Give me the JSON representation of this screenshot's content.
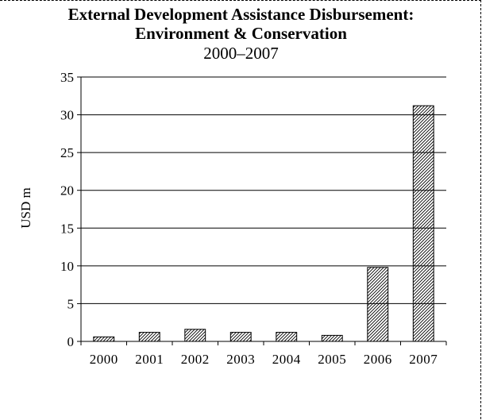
{
  "chart_data": {
    "type": "bar",
    "title": "External Development Assistance Disbursement:",
    "title_line2": "Environment & Conservation",
    "subtitle": "2000–2007",
    "xlabel": "",
    "ylabel": "USD m",
    "categories": [
      "2000",
      "2001",
      "2002",
      "2003",
      "2004",
      "2005",
      "2006",
      "2007"
    ],
    "series": [
      {
        "values": [
          0.6,
          1.2,
          1.6,
          1.2,
          1.2,
          0.8,
          9.8,
          31.2
        ]
      }
    ],
    "ylim": [
      0,
      35
    ],
    "yticks": [
      0,
      5,
      10,
      15,
      20,
      25,
      30,
      35
    ],
    "grid": true,
    "legend": "none",
    "bar_fill": "diagonal-hatch",
    "colors": {
      "bar_stroke": "#000000",
      "hatch": "#000000",
      "background": "#ffffff"
    }
  }
}
